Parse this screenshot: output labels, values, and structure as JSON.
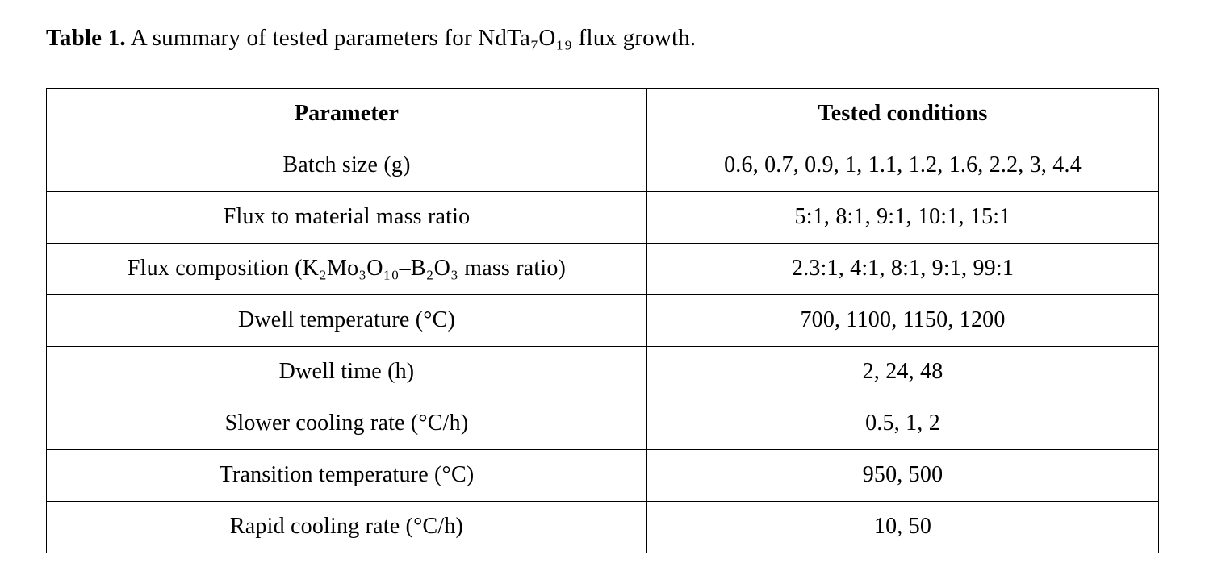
{
  "caption": {
    "label": "Table 1.",
    "text": " A summary of tested parameters for NdTa₇O₁₉ flux growth."
  },
  "table": {
    "headers": [
      "Parameter",
      "Tested conditions"
    ],
    "rows": [
      {
        "parameter": "Batch size (g)",
        "conditions": "0.6, 0.7, 0.9, 1, 1.1, 1.2, 1.6, 2.2, 3, 4.4"
      },
      {
        "parameter": "Flux to material mass ratio",
        "conditions": "5:1, 8:1, 9:1, 10:1, 15:1"
      },
      {
        "parameter": "Flux composition (K₂Mo₃O₁₀–B₂O₃ mass ratio)",
        "conditions": "2.3:1, 4:1, 8:1, 9:1, 99:1"
      },
      {
        "parameter": "Dwell temperature (°C)",
        "conditions": "700, 1100, 1150, 1200"
      },
      {
        "parameter": "Dwell time (h)",
        "conditions": "2, 24, 48"
      },
      {
        "parameter": "Slower cooling rate (°C/h)",
        "conditions": "0.5, 1, 2"
      },
      {
        "parameter": "Transition temperature (°C)",
        "conditions": "950, 500"
      },
      {
        "parameter": "Rapid cooling rate (°C/h)",
        "conditions": "10, 50"
      }
    ]
  }
}
